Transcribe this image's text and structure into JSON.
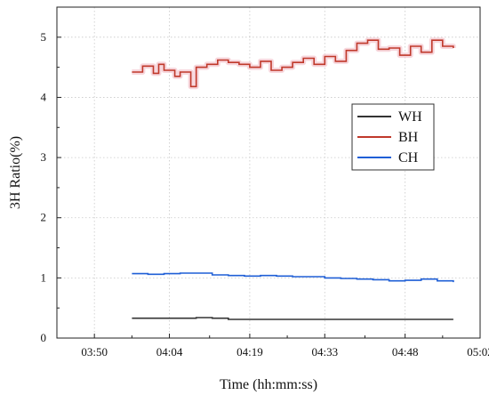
{
  "chart_data": {
    "type": "line",
    "xlabel": "Time (hh:mm:ss)",
    "ylabel": "3H Ratio(%)",
    "x_ticks": [
      "03:50",
      "04:04",
      "04:19",
      "04:33",
      "04:48",
      "05:02"
    ],
    "x_range": [
      "03:43",
      "05:02"
    ],
    "ylim": [
      0,
      5.5
    ],
    "y_ticks": [
      "0",
      "1",
      "2",
      "3",
      "4",
      "5"
    ],
    "grid": true,
    "legend_position": "right-center",
    "series": [
      {
        "name": "WH",
        "color": "#333333",
        "x": [
          "03:57",
          "04:00",
          "04:03",
          "04:06",
          "04:09",
          "04:12",
          "04:15",
          "04:18",
          "04:21",
          "04:24",
          "04:27",
          "04:30",
          "04:33",
          "04:36",
          "04:39",
          "04:42",
          "04:45",
          "04:48",
          "04:51",
          "04:54",
          "04:57"
        ],
        "values": [
          0.33,
          0.33,
          0.33,
          0.33,
          0.34,
          0.33,
          0.31,
          0.31,
          0.31,
          0.31,
          0.31,
          0.31,
          0.31,
          0.31,
          0.31,
          0.31,
          0.31,
          0.31,
          0.31,
          0.31,
          0.31
        ]
      },
      {
        "name": "BH",
        "color": "#c0392b",
        "x": [
          "03:57",
          "03:59",
          "04:01",
          "04:02",
          "04:03",
          "04:05",
          "04:06",
          "04:08",
          "04:09",
          "04:11",
          "04:13",
          "04:15",
          "04:17",
          "04:19",
          "04:21",
          "04:23",
          "04:25",
          "04:27",
          "04:29",
          "04:31",
          "04:33",
          "04:35",
          "04:37",
          "04:39",
          "04:41",
          "04:43",
          "04:45",
          "04:47",
          "04:49",
          "04:51",
          "04:53",
          "04:55",
          "04:57"
        ],
        "values": [
          4.42,
          4.52,
          4.4,
          4.55,
          4.45,
          4.35,
          4.42,
          4.18,
          4.5,
          4.55,
          4.62,
          4.58,
          4.55,
          4.5,
          4.6,
          4.45,
          4.5,
          4.58,
          4.65,
          4.55,
          4.68,
          4.6,
          4.78,
          4.9,
          4.95,
          4.8,
          4.82,
          4.7,
          4.85,
          4.75,
          4.95,
          4.85,
          4.82
        ]
      },
      {
        "name": "CH",
        "color": "#1f5fd6",
        "x": [
          "03:57",
          "04:00",
          "04:03",
          "04:06",
          "04:09",
          "04:12",
          "04:15",
          "04:18",
          "04:21",
          "04:24",
          "04:27",
          "04:30",
          "04:33",
          "04:36",
          "04:39",
          "04:42",
          "04:45",
          "04:48",
          "04:51",
          "04:54",
          "04:57"
        ],
        "values": [
          1.07,
          1.06,
          1.07,
          1.08,
          1.08,
          1.05,
          1.04,
          1.03,
          1.04,
          1.03,
          1.02,
          1.02,
          1.0,
          0.99,
          0.98,
          0.97,
          0.95,
          0.96,
          0.98,
          0.95,
          0.93
        ]
      }
    ]
  }
}
